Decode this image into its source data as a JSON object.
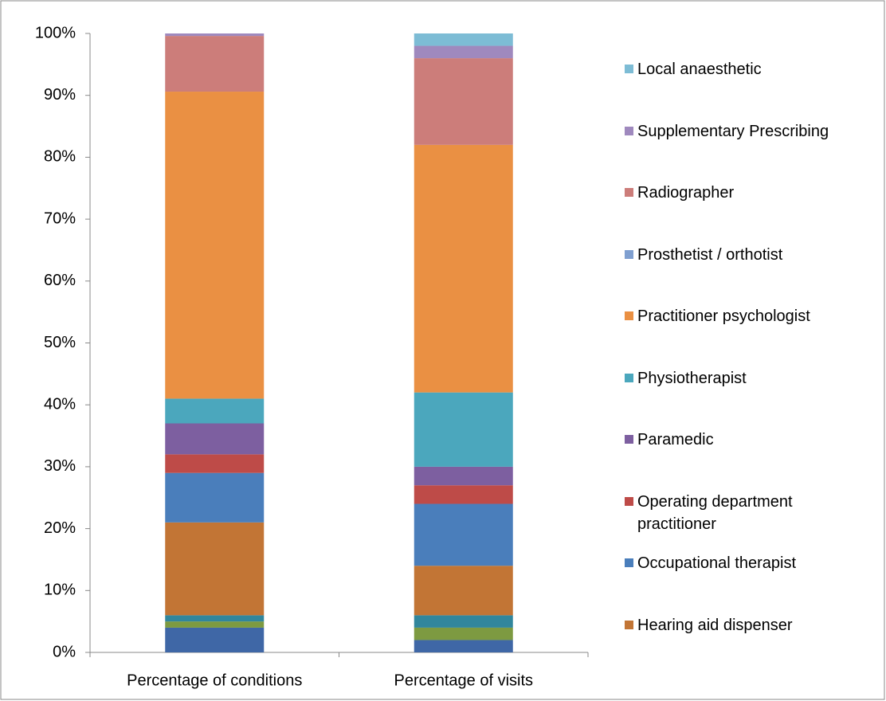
{
  "chart_data": {
    "type": "stacked_bar",
    "categories": [
      "Percentage of conditions",
      "Percentage of visits"
    ],
    "series": [
      {
        "color": "#3f67a6",
        "values": [
          4,
          2
        ]
      },
      {
        "color": "#7d9a41",
        "values": [
          1,
          2
        ]
      },
      {
        "color": "#31869c",
        "values": [
          1,
          2
        ]
      },
      {
        "name": "Hearing aid dispenser",
        "color": "#c27535",
        "values": [
          15,
          8
        ]
      },
      {
        "name": "Occupational therapist",
        "color": "#4a7ebb",
        "values": [
          8,
          10
        ]
      },
      {
        "name": "Operating department practitioner",
        "color": "#be4b48",
        "values": [
          3,
          3
        ]
      },
      {
        "name": "Paramedic",
        "color": "#7d5fa0",
        "values": [
          5,
          3
        ]
      },
      {
        "name": "Physiotherapist",
        "color": "#4ba7bd",
        "values": [
          4,
          12
        ]
      },
      {
        "name": "Practitioner psychologist",
        "color": "#ea9043",
        "values": [
          49.6,
          40
        ]
      },
      {
        "name": "Prosthetist / orthotist",
        "color": "#7f9fd0",
        "values": [
          0,
          0
        ]
      },
      {
        "name": "Radiographer",
        "color": "#cc7d7a",
        "values": [
          9,
          14
        ]
      },
      {
        "name": "Supplementary Prescribing",
        "color": "#9f89be",
        "values": [
          0.4,
          2
        ]
      },
      {
        "name": "Local anaesthetic",
        "color": "#7dbcd5",
        "values": [
          0,
          2
        ]
      }
    ],
    "ylim": [
      0,
      100
    ],
    "yticks": [
      {
        "value": 0,
        "label": "0%"
      },
      {
        "value": 10,
        "label": "10%"
      },
      {
        "value": 20,
        "label": "20%"
      },
      {
        "value": 30,
        "label": "30%"
      },
      {
        "value": 40,
        "label": "40%"
      },
      {
        "value": 50,
        "label": "50%"
      },
      {
        "value": 60,
        "label": "60%"
      },
      {
        "value": 70,
        "label": "70%"
      },
      {
        "value": 80,
        "label": "80%"
      },
      {
        "value": 90,
        "label": "90%"
      },
      {
        "value": 100,
        "label": "100%"
      }
    ],
    "legend": "right"
  }
}
